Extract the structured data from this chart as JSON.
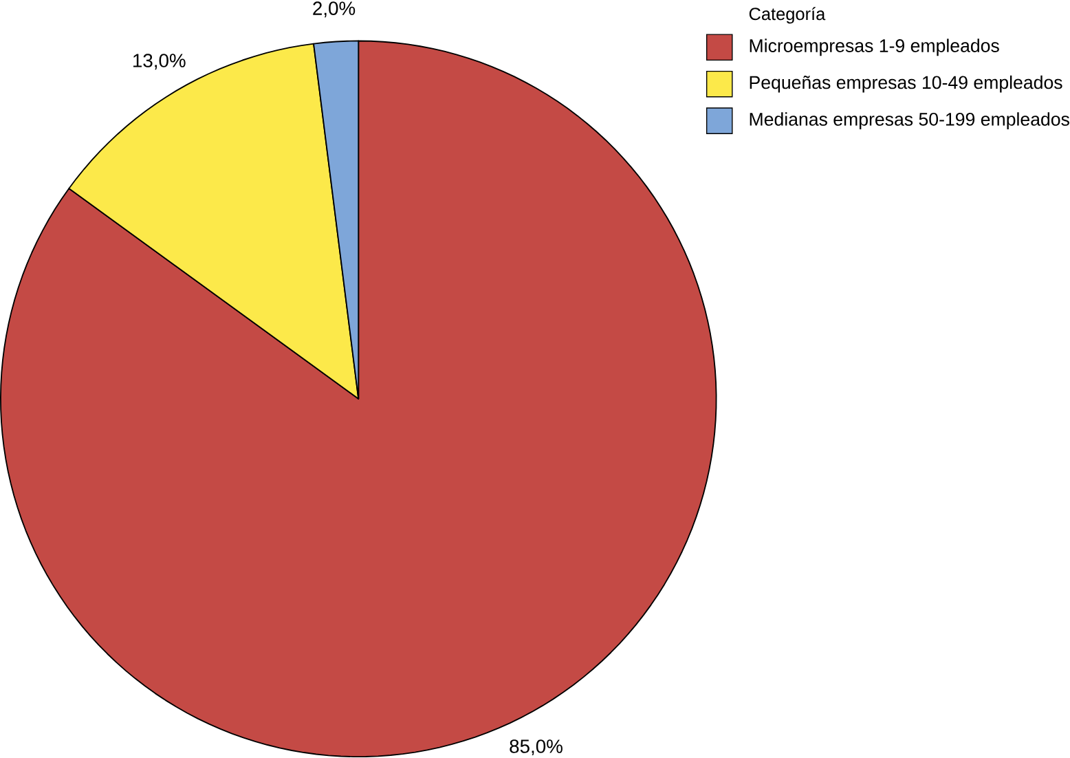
{
  "chart_data": {
    "type": "pie",
    "legend_title": "Categoría",
    "legend": "top right",
    "categories": [
      "Microempresas 1-9 empleados",
      "Pequeñas empresas 10-49 empleados",
      "Medianas empresas 50-199 empleados"
    ],
    "values": [
      85.0,
      13.0,
      2.0
    ],
    "value_labels": [
      "85,0%",
      "13,0%",
      "2,0%"
    ],
    "colors": [
      "#c44a45",
      "#fce94a",
      "#7ea6d9"
    ]
  }
}
